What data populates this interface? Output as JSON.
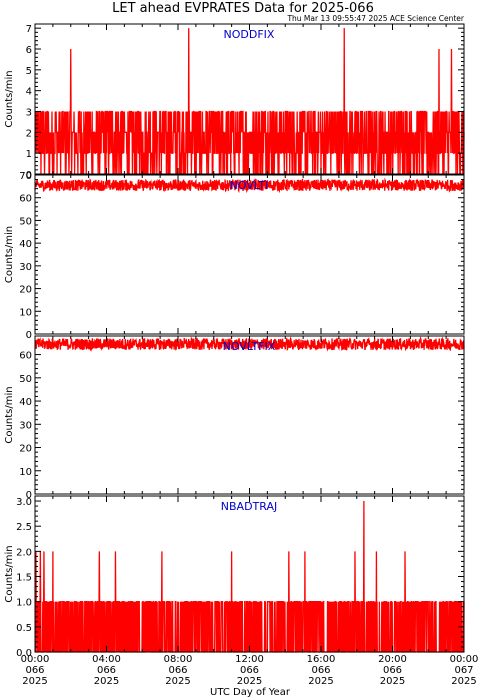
{
  "title": "LET ahead EVPRATES Data for 2025-066",
  "timestamp": "Thu Mar 13 09:55:47 2025 ACE Science Center",
  "xlabel": "UTC Day of Year",
  "x_ticks": [
    {
      "time": "00:00",
      "doy": "066",
      "year": "2025"
    },
    {
      "time": "04:00",
      "doy": "066",
      "year": "2025"
    },
    {
      "time": "08:00",
      "doy": "066",
      "year": "2025"
    },
    {
      "time": "12:00",
      "doy": "066",
      "year": "2025"
    },
    {
      "time": "16:00",
      "doy": "066",
      "year": "2025"
    },
    {
      "time": "20:00",
      "doy": "066",
      "year": "2025"
    },
    {
      "time": "00:00",
      "doy": "067",
      "year": "2025"
    }
  ],
  "colors": {
    "trace": "#ff0000",
    "label": "#0000cc",
    "axes": "#000000"
  },
  "chart_data": [
    {
      "type": "line",
      "label": "NODDFIX",
      "ylabel": "Counts/min",
      "xlim": [
        0,
        24
      ],
      "ylim": [
        0,
        7.2
      ],
      "yticks": [
        "0",
        "1",
        "2",
        "3",
        "4",
        "5",
        "6",
        "7"
      ],
      "typical_range": [
        0,
        3
      ],
      "peaks": [
        {
          "x": 2.0,
          "y": 6
        },
        {
          "x": 8.6,
          "y": 7
        },
        {
          "x": 17.3,
          "y": 7
        },
        {
          "x": 22.6,
          "y": 6
        },
        {
          "x": 23.3,
          "y": 6
        }
      ]
    },
    {
      "type": "line",
      "label": "NOVLTI",
      "ylabel": "Counts/min",
      "xlim": [
        0,
        24
      ],
      "ylim": [
        0,
        70
      ],
      "yticks": [
        "0",
        "10",
        "20",
        "30",
        "40",
        "50",
        "60",
        "70"
      ],
      "typical_range": [
        63,
        68
      ]
    },
    {
      "type": "line",
      "label": "NOVLTFIX",
      "ylabel": "Counts/min",
      "xlim": [
        0,
        24
      ],
      "ylim": [
        0,
        68
      ],
      "yticks": [
        "0",
        "10",
        "20",
        "30",
        "40",
        "50",
        "60"
      ],
      "typical_range": [
        62,
        67
      ]
    },
    {
      "type": "line",
      "label": "NBADTRAJ",
      "ylabel": "Counts/min",
      "xlim": [
        0,
        24
      ],
      "ylim": [
        0,
        3.1
      ],
      "yticks": [
        "0.0",
        "0.5",
        "1.0",
        "1.5",
        "2.0",
        "2.5",
        "3.0"
      ],
      "typical_range": [
        0,
        1
      ],
      "peaks": [
        {
          "x": 0.05,
          "y": 2
        },
        {
          "x": 0.3,
          "y": 2
        },
        {
          "x": 0.5,
          "y": 2
        },
        {
          "x": 1.0,
          "y": 2
        },
        {
          "x": 3.6,
          "y": 2
        },
        {
          "x": 4.5,
          "y": 2
        },
        {
          "x": 7.1,
          "y": 2
        },
        {
          "x": 11.0,
          "y": 2
        },
        {
          "x": 14.2,
          "y": 2
        },
        {
          "x": 15.1,
          "y": 2
        },
        {
          "x": 17.9,
          "y": 2
        },
        {
          "x": 18.4,
          "y": 3
        },
        {
          "x": 19.1,
          "y": 2
        },
        {
          "x": 20.7,
          "y": 2
        }
      ]
    }
  ]
}
